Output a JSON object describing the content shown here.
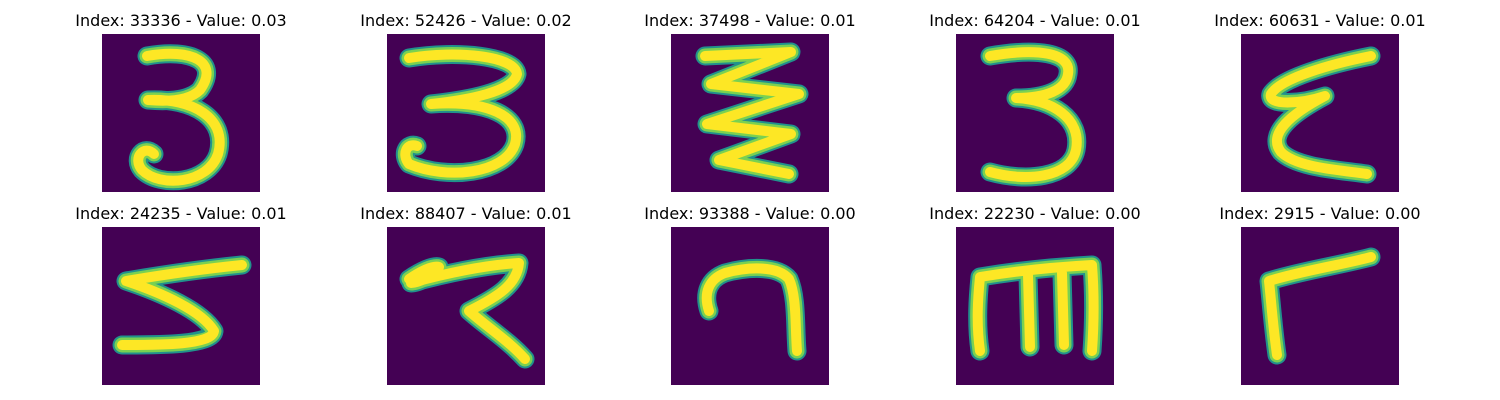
{
  "panels": [
    {
      "title": "Index: 33336 - Value: 0.03",
      "glyph": "digit-3-icon"
    },
    {
      "title": "Index: 52426 - Value: 0.02",
      "glyph": "digit-3-flat-icon"
    },
    {
      "title": "Index: 37498 - Value: 0.01",
      "glyph": "zigzag-icon"
    },
    {
      "title": "Index: 64204 - Value: 0.01",
      "glyph": "digit-3-icon"
    },
    {
      "title": "Index: 60631 - Value: 0.01",
      "glyph": "epsilon-icon"
    },
    {
      "title": "Index: 24235 - Value: 0.01",
      "glyph": "digit-5-icon"
    },
    {
      "title": "Index: 88407 - Value: 0.01",
      "glyph": "zigzag-hook-icon"
    },
    {
      "title": "Index: 93388 - Value: 0.00",
      "glyph": "digit-7-icon"
    },
    {
      "title": "Index: 22230 - Value: 0.00",
      "glyph": "letter-m-icon"
    },
    {
      "title": "Index: 2915 - Value: 0.00",
      "glyph": "letter-r-icon"
    }
  ],
  "colors": {
    "background": "#440154",
    "stroke_core": "#fde725",
    "stroke_mid": "#7ad151",
    "stroke_edge": "#21918c"
  }
}
